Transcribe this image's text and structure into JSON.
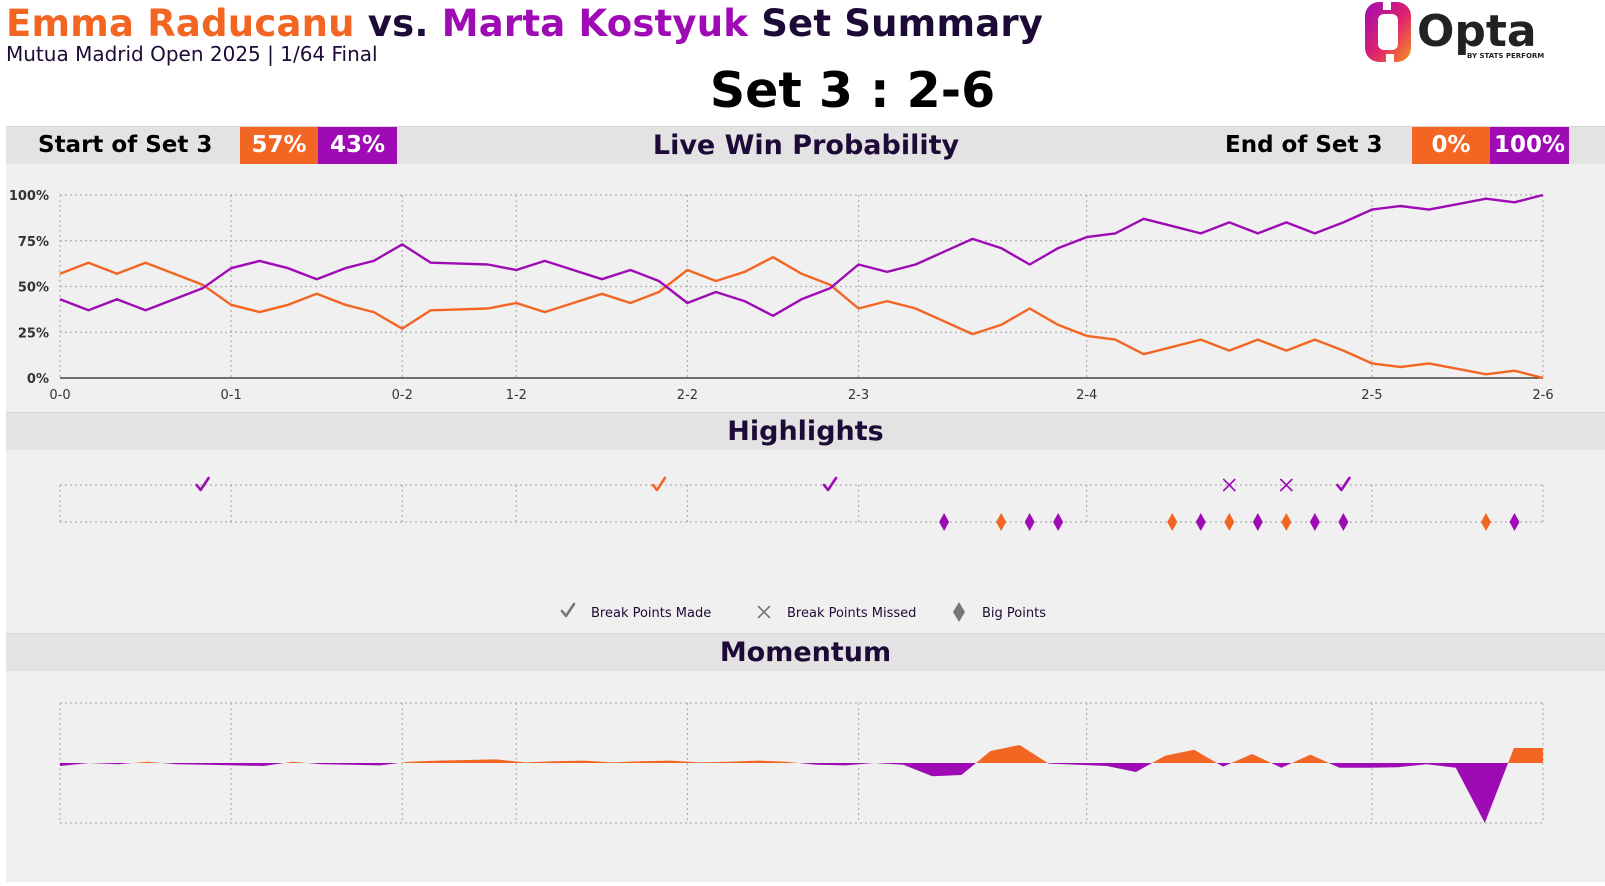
{
  "header": {
    "player1": "Emma Raducanu",
    "vs": "vs.",
    "player2": "Marta Kostyuk",
    "suffix": "Set Summary",
    "subtitle": "Mutua Madrid Open 2025 | 1/64 Final",
    "set_score": "Set 3 : 2-6",
    "logo_text": "Opta",
    "logo_sub": "BY STATS PERFORM"
  },
  "colors": {
    "player1": "#f26522",
    "player2": "#9e0bb5",
    "dark": "#1e0a37",
    "bar_bg": "#e3e3e3",
    "panel_bg": "#f0f0f0"
  },
  "win_prob_bar": {
    "start_label": "Start of Set 3",
    "start_p1": "57%",
    "start_p2": "43%",
    "title": "Live Win Probability",
    "end_label": "End of Set 3",
    "end_p1": "0%",
    "end_p2": "100%"
  },
  "highlights_title": "Highlights",
  "momentum_title": "Momentum",
  "legend": [
    {
      "icon": "check-icon",
      "label": "Break Points Made"
    },
    {
      "icon": "cross-icon",
      "label": "Break Points Missed"
    },
    {
      "icon": "diamond-icon",
      "label": "Big Points"
    }
  ],
  "chart_data": [
    {
      "type": "line",
      "title": "Live Win Probability",
      "x_tick_labels": [
        "0-0",
        "0-1",
        "0-2",
        "1-2",
        "2-2",
        "2-3",
        "2-4",
        "2-5",
        "2-6"
      ],
      "x_tick_points": [
        0,
        6,
        12,
        16,
        22,
        28,
        36,
        46,
        52
      ],
      "y_tick_labels": [
        "0%",
        "25%",
        "50%",
        "75%",
        "100%"
      ],
      "ylim": [
        0,
        100
      ],
      "grid": true,
      "series": [
        {
          "name": "Emma Raducanu",
          "color": "#f26522",
          "values": [
            57,
            63,
            57,
            63,
            57,
            51,
            40,
            36,
            40,
            46,
            40,
            36,
            27,
            37,
            37.5,
            38,
            41,
            36,
            41,
            46,
            41,
            47,
            59,
            53,
            58,
            66,
            57,
            51,
            38,
            42,
            38,
            31,
            24,
            29,
            38,
            29,
            23,
            21,
            13,
            17,
            21,
            15,
            21,
            15,
            21,
            15,
            8,
            6,
            8,
            5,
            2,
            4,
            0
          ]
        },
        {
          "name": "Marta Kostyuk",
          "color": "#9e0bb5",
          "values": [
            43,
            37,
            43,
            37,
            43,
            49,
            60,
            64,
            60,
            54,
            60,
            64,
            73,
            63,
            62.5,
            62,
            59,
            64,
            59,
            54,
            59,
            53,
            41,
            47,
            42,
            34,
            43,
            49,
            62,
            58,
            62,
            69,
            76,
            71,
            62,
            71,
            77,
            79,
            87,
            83,
            79,
            85,
            79,
            85,
            79,
            85,
            92,
            94,
            92,
            95,
            98,
            96,
            100
          ]
        }
      ]
    },
    {
      "type": "scatter",
      "title": "Highlights",
      "break_points_made": [
        {
          "point": 5,
          "player": "Marta Kostyuk"
        },
        {
          "point": 21,
          "player": "Emma Raducanu"
        },
        {
          "point": 27,
          "player": "Marta Kostyuk"
        },
        {
          "point": 45,
          "player": "Marta Kostyuk"
        }
      ],
      "break_points_missed": [
        {
          "point": 41,
          "player": "Marta Kostyuk"
        },
        {
          "point": 43,
          "player": "Marta Kostyuk"
        }
      ],
      "big_points": [
        {
          "point": 31,
          "player": "Marta Kostyuk"
        },
        {
          "point": 33,
          "player": "Emma Raducanu"
        },
        {
          "point": 34,
          "player": "Marta Kostyuk"
        },
        {
          "point": 35,
          "player": "Marta Kostyuk"
        },
        {
          "point": 39,
          "player": "Emma Raducanu"
        },
        {
          "point": 40,
          "player": "Marta Kostyuk"
        },
        {
          "point": 41,
          "player": "Emma Raducanu"
        },
        {
          "point": 42,
          "player": "Marta Kostyuk"
        },
        {
          "point": 43,
          "player": "Emma Raducanu"
        },
        {
          "point": 44,
          "player": "Marta Kostyuk"
        },
        {
          "point": 45,
          "player": "Marta Kostyuk"
        },
        {
          "point": 50,
          "player": "Emma Raducanu"
        },
        {
          "point": 51,
          "player": "Marta Kostyuk"
        }
      ]
    },
    {
      "type": "area",
      "title": "Momentum",
      "ylim": [
        -1,
        1
      ],
      "values": [
        -0.05,
        0,
        -0.02,
        0.02,
        -0.02,
        -0.03,
        -0.04,
        -0.05,
        0.02,
        -0.02,
        -0.03,
        -0.04,
        0.02,
        0.04,
        0.05,
        0.06,
        0.01,
        0.03,
        0.04,
        0.01,
        0.03,
        0.04,
        0.01,
        0.02,
        0.04,
        0.02,
        -0.03,
        -0.04,
        0,
        -0.03,
        -0.22,
        -0.2,
        0.2,
        0.3,
        -0.01,
        -0.03,
        -0.05,
        -0.15,
        0.12,
        0.22,
        -0.06,
        0.15,
        -0.08,
        0.14,
        -0.08,
        -0.08,
        -0.07,
        -0.02,
        -0.08,
        -1.0,
        0.25,
        0.25
      ]
    }
  ]
}
